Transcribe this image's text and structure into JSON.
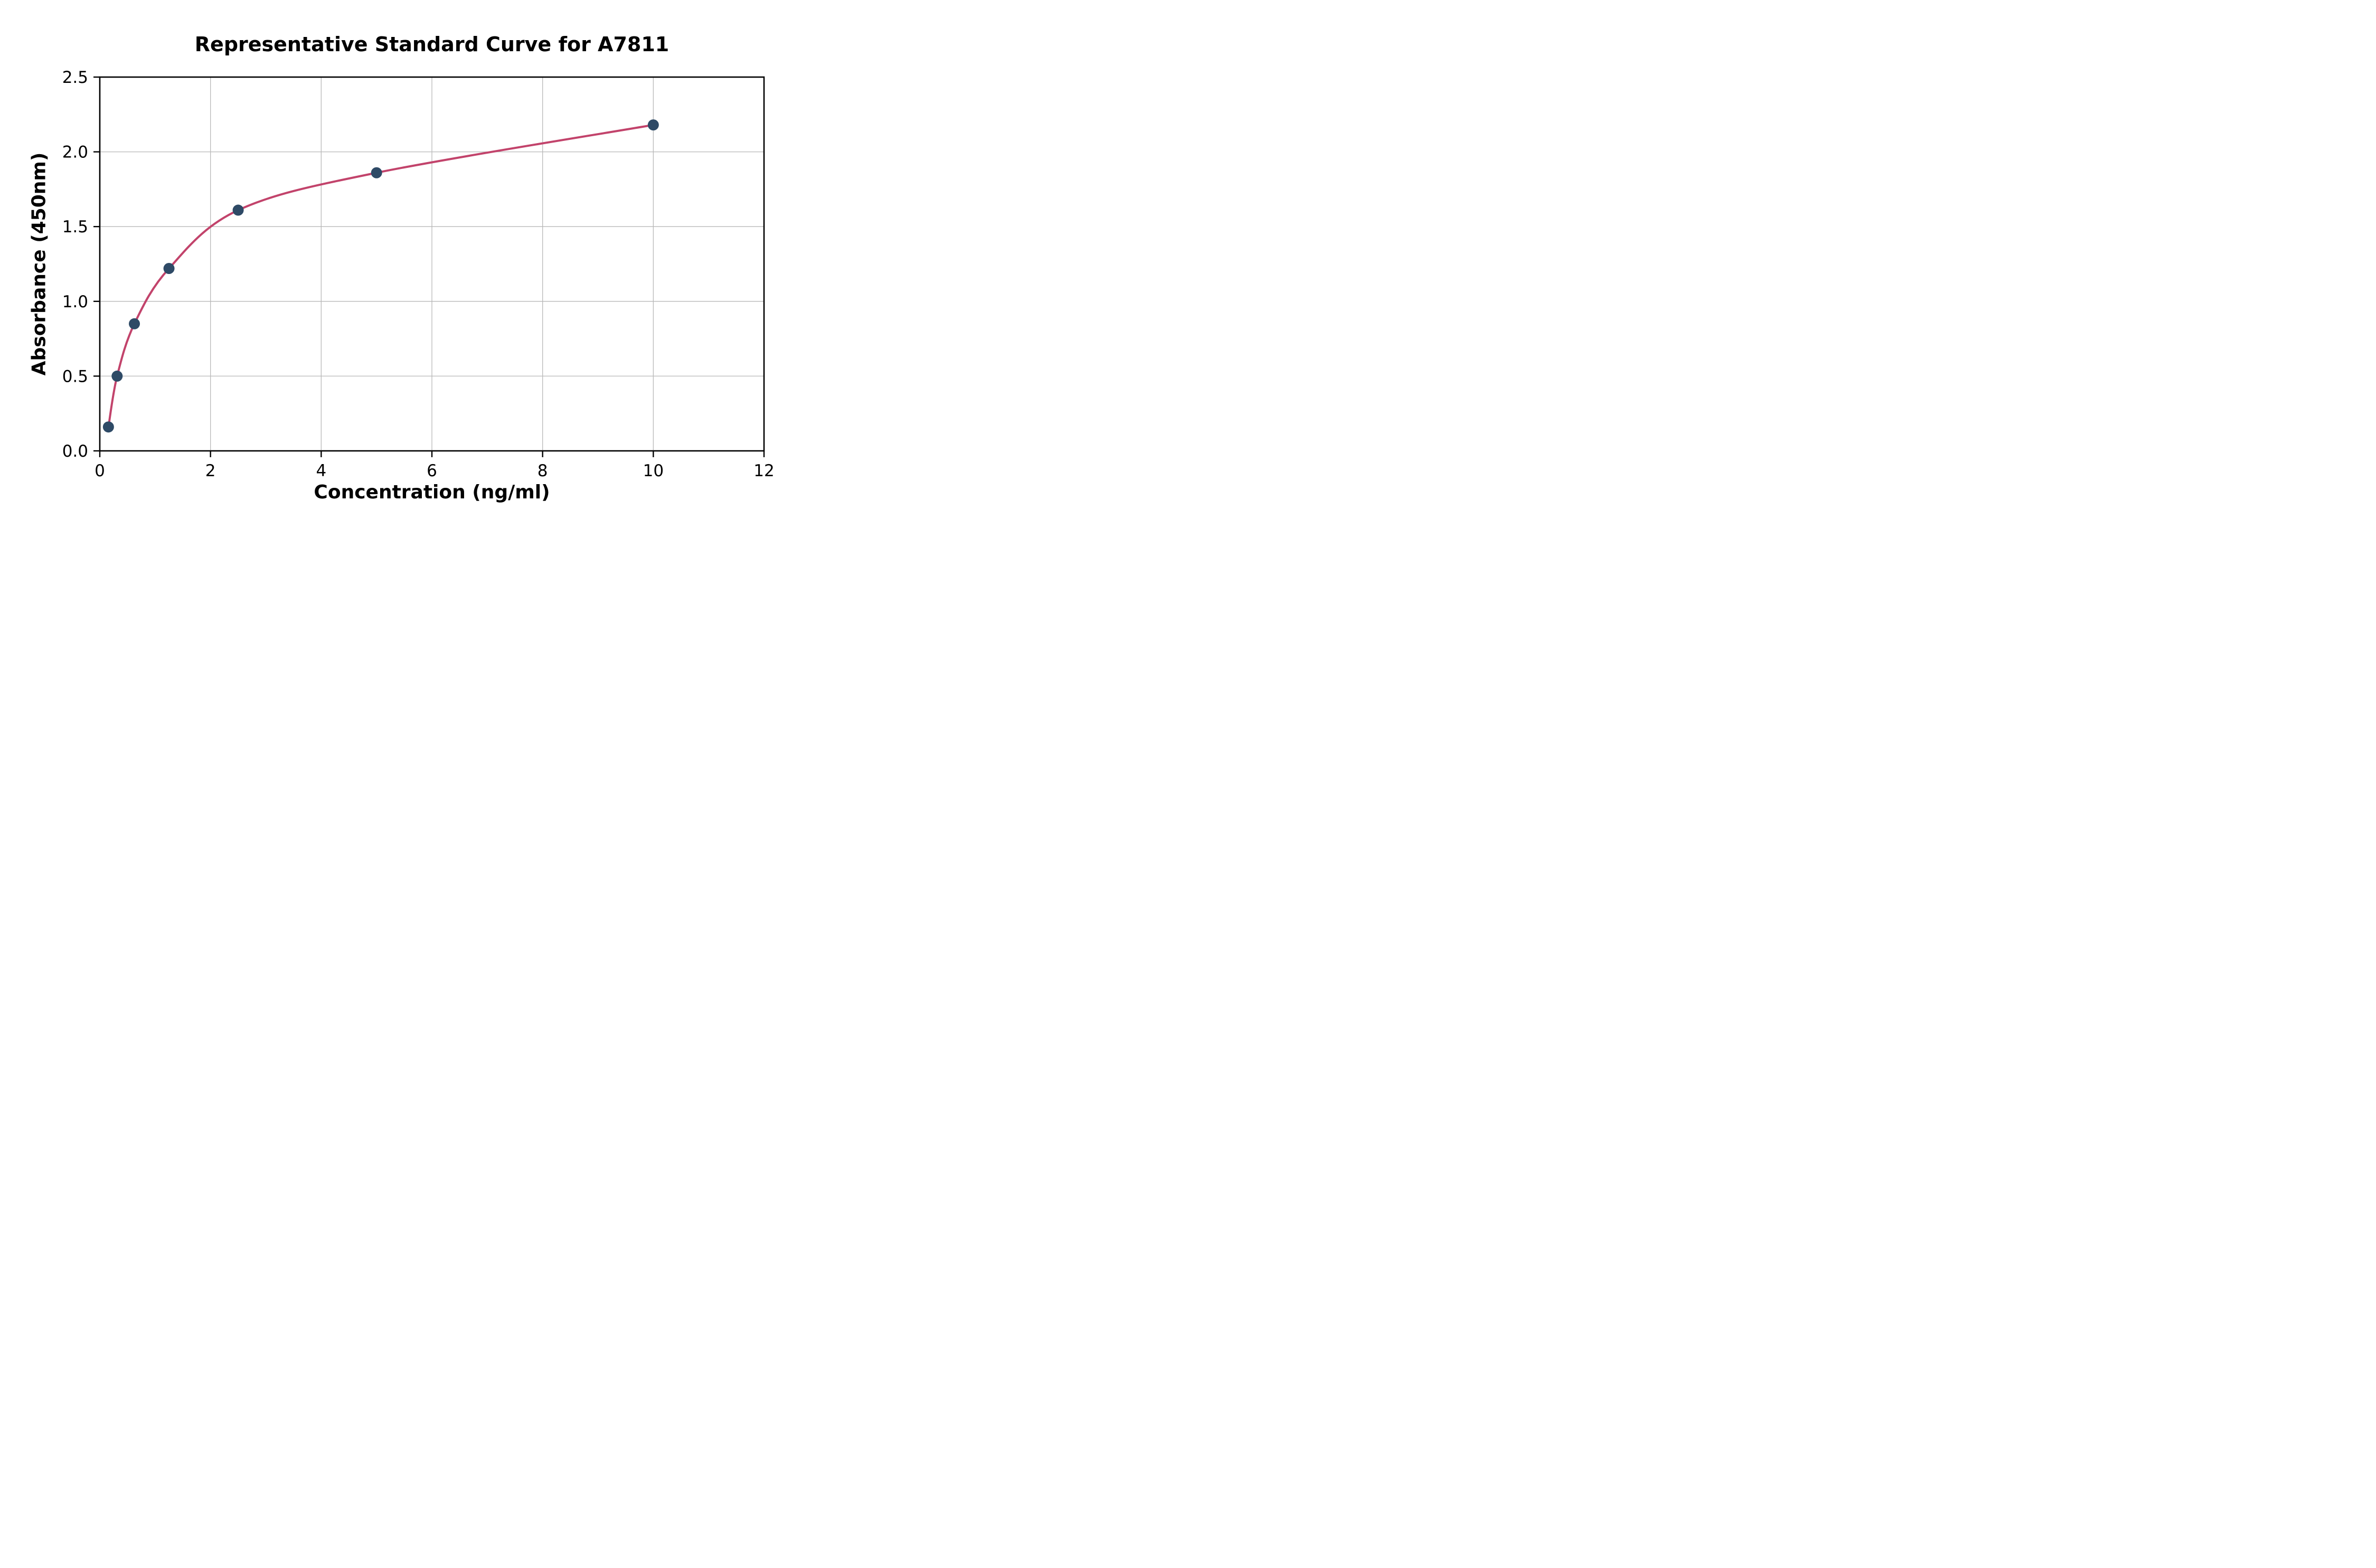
{
  "page": {
    "background": "#ffffff"
  },
  "chart_data": {
    "type": "scatter",
    "title": "Representative Standard Curve for A7811",
    "xlabel": "Concentration (ng/ml)",
    "ylabel": "Absorbance (450nm)",
    "xlim": [
      0,
      12
    ],
    "ylim": [
      0,
      2.5
    ],
    "x_ticks": [
      0,
      2,
      4,
      6,
      8,
      10,
      12
    ],
    "x_tick_labels": [
      "0",
      "2",
      "4",
      "6",
      "8",
      "10",
      "12"
    ],
    "y_ticks": [
      0.0,
      0.5,
      1.0,
      1.5,
      2.0,
      2.5
    ],
    "y_tick_labels": [
      "0.0",
      "0.5",
      "1.0",
      "1.5",
      "2.0",
      "2.5"
    ],
    "grid": true,
    "legend": "none",
    "points": [
      {
        "x": 0.156,
        "y": 0.16
      },
      {
        "x": 0.313,
        "y": 0.5
      },
      {
        "x": 0.625,
        "y": 0.85
      },
      {
        "x": 1.25,
        "y": 1.22
      },
      {
        "x": 2.5,
        "y": 1.61
      },
      {
        "x": 5.0,
        "y": 1.86
      },
      {
        "x": 10.0,
        "y": 2.18
      }
    ],
    "series_note": "single series: fitted standard curve through 7 calibration points",
    "curve_color": "#c2436b",
    "point_color": "#2e4a66",
    "grid_color": "#b8b8b8",
    "axis_color": "#000000",
    "text_color": "#000000"
  }
}
